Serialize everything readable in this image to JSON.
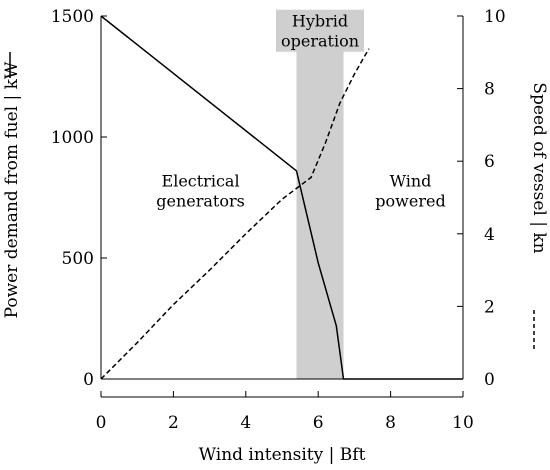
{
  "chart_data": {
    "type": "line",
    "xlabel": "Wind intensity | Bft",
    "ylabel_left": "Power demand from fuel | kW",
    "ylabel_right": "Speed of vessel | kn",
    "xlim": [
      0,
      10
    ],
    "ylim_left": [
      0,
      1500
    ],
    "ylim_right": [
      0,
      10
    ],
    "x_ticks": [
      0,
      2,
      4,
      6,
      8,
      10
    ],
    "y_left_ticks": [
      0,
      500,
      1000,
      1500
    ],
    "y_right_ticks": [
      0,
      2,
      4,
      6,
      8,
      10
    ],
    "grid": false,
    "series": [
      {
        "axis": "left",
        "style": "solid",
        "x": [
          0,
          5.4,
          6.0,
          6.5,
          6.7,
          10
        ],
        "y": [
          1500,
          860,
          480,
          220,
          0,
          0
        ]
      },
      {
        "axis": "right",
        "style": "dashed",
        "x": [
          0,
          1.0,
          2.0,
          3.0,
          4.0,
          5.0,
          5.8,
          6.2,
          6.6,
          7.0,
          7.4
        ],
        "y": [
          0,
          1.0,
          2.05,
          3.0,
          4.0,
          4.95,
          5.55,
          6.5,
          7.6,
          8.4,
          9.1
        ]
      }
    ],
    "shaded_region": {
      "x": [
        5.4,
        6.7
      ],
      "color": "#cfcfcf"
    },
    "annotations": [
      {
        "lines": [
          "Electrical",
          "generators"
        ],
        "x": 2.75,
        "y": 775
      },
      {
        "lines": [
          "Wind",
          "powered"
        ],
        "x": 8.55,
        "y": 775
      },
      {
        "lines": [
          "Hybrid",
          "operation"
        ],
        "x": 6.05,
        "y": 1435
      }
    ],
    "legend_marks": {
      "left": "solid",
      "right": "dashed"
    }
  }
}
